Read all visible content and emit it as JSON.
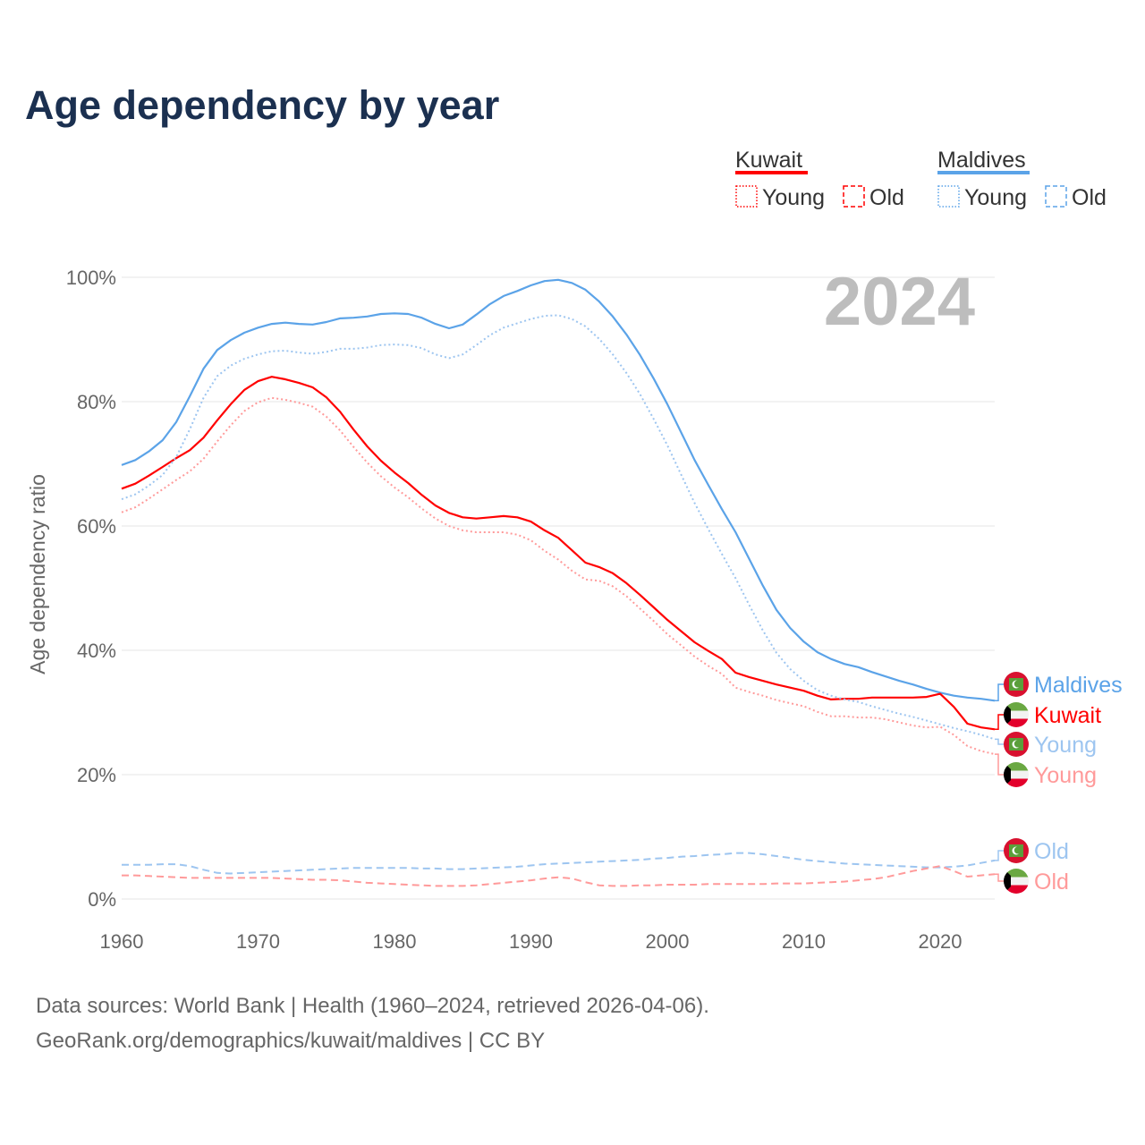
{
  "title": "Age dependency by year",
  "year_badge": "2024",
  "footer": {
    "line1": "Data sources: World Bank | Health (1960–2024, retrieved 2026-04-06).",
    "line2": "GeoRank.org/demographics/kuwait/maldives | CC BY"
  },
  "legend": {
    "groups": [
      {
        "country": "Kuwait",
        "young": "Young",
        "old": "Old",
        "color": "#ff0000",
        "light": "#ff9a9a"
      },
      {
        "country": "Maldives",
        "young": "Young",
        "old": "Old",
        "color": "#5ba3e8",
        "light": "#9dc5f0"
      }
    ]
  },
  "colors": {
    "kuwait": "#ff0000",
    "kuwait_light": "#ff9a9a",
    "maldives": "#5ba3e8",
    "maldives_light": "#9dc5f0",
    "title": "#1b3050",
    "grid": "#e6e6e6"
  },
  "chart_data": {
    "type": "line",
    "title": "Age dependency by year",
    "xlabel": "",
    "ylabel": "Age dependency ratio",
    "xlim": [
      1960,
      2024
    ],
    "ylim": [
      0,
      100
    ],
    "yticks": [
      "0%",
      "20%",
      "40%",
      "60%",
      "80%",
      "100%"
    ],
    "ytick_values": [
      0,
      20,
      40,
      60,
      80,
      100
    ],
    "xticks": [
      "1960",
      "1970",
      "1980",
      "1990",
      "2000",
      "2010",
      "2020"
    ],
    "xtick_values": [
      1960,
      1970,
      1980,
      1990,
      2000,
      2010,
      2020
    ],
    "grid": true,
    "legend_position": "top-right",
    "x_start": 1960,
    "series": [
      {
        "name": "Maldives",
        "label": "Maldives",
        "country": "maldives",
        "style": "solid",
        "color": "#5ba3e8",
        "values": [
          69.8,
          70.6,
          72.0,
          73.8,
          76.7,
          80.9,
          85.3,
          88.3,
          89.9,
          91.1,
          91.9,
          92.5,
          92.7,
          92.5,
          92.4,
          92.8,
          93.4,
          93.5,
          93.7,
          94.1,
          94.2,
          94.1,
          93.5,
          92.5,
          91.8,
          92.4,
          94.0,
          95.7,
          97.0,
          97.8,
          98.7,
          99.4,
          99.6,
          99.1,
          98.0,
          96.1,
          93.7,
          90.8,
          87.5,
          83.7,
          79.6,
          75.1,
          70.6,
          66.6,
          62.7,
          59.0,
          54.7,
          50.4,
          46.5,
          43.6,
          41.4,
          39.7,
          38.6,
          37.8,
          37.3,
          36.5,
          35.8,
          35.1,
          34.5,
          33.8,
          33.2,
          32.7,
          32.4,
          32.2,
          31.9
        ]
      },
      {
        "name": "Kuwait",
        "label": "Kuwait",
        "country": "kuwait",
        "style": "solid",
        "color": "#ff0000",
        "values": [
          66.0,
          66.8,
          68.1,
          69.5,
          70.9,
          72.2,
          74.2,
          77.0,
          79.6,
          81.9,
          83.3,
          84.0,
          83.6,
          83.0,
          82.3,
          80.7,
          78.4,
          75.5,
          72.8,
          70.5,
          68.6,
          66.9,
          65.0,
          63.3,
          62.1,
          61.4,
          61.2,
          61.4,
          61.6,
          61.4,
          60.7,
          59.3,
          58.1,
          56.1,
          54.1,
          53.4,
          52.4,
          50.8,
          48.9,
          46.9,
          44.9,
          43.1,
          41.3,
          39.9,
          38.6,
          36.4,
          35.7,
          35.1,
          34.5,
          34.0,
          33.5,
          32.7,
          32.1,
          32.2,
          32.2,
          32.4,
          32.4,
          32.4,
          32.4,
          32.5,
          33.0,
          30.9,
          28.2,
          27.6,
          27.3
        ]
      },
      {
        "name": "Maldives Young",
        "label": "Young",
        "country": "maldives",
        "style": "dotted",
        "color": "#9dc5f0",
        "values": [
          64.3,
          65.1,
          66.5,
          68.2,
          71.1,
          75.6,
          80.6,
          84.1,
          85.8,
          86.9,
          87.6,
          88.1,
          88.2,
          87.9,
          87.7,
          88.0,
          88.5,
          88.5,
          88.7,
          89.1,
          89.2,
          89.1,
          88.6,
          87.6,
          87.0,
          87.6,
          89.1,
          90.7,
          91.9,
          92.6,
          93.3,
          93.8,
          93.9,
          93.3,
          92.1,
          90.1,
          87.6,
          84.6,
          81.2,
          77.2,
          73.0,
          68.3,
          63.7,
          59.5,
          55.5,
          51.6,
          47.3,
          43.2,
          39.6,
          37.0,
          35.1,
          33.6,
          32.7,
          32.1,
          31.7,
          31.0,
          30.4,
          29.8,
          29.3,
          28.7,
          28.1,
          27.5,
          27.0,
          26.4,
          25.7
        ]
      },
      {
        "name": "Kuwait Young",
        "label": "Young",
        "country": "kuwait",
        "style": "dotted",
        "color": "#ff9a9a",
        "values": [
          62.2,
          63.0,
          64.4,
          65.9,
          67.4,
          68.8,
          70.8,
          73.6,
          76.2,
          78.5,
          79.9,
          80.6,
          80.3,
          79.8,
          79.2,
          77.6,
          75.4,
          72.7,
          70.2,
          68.0,
          66.2,
          64.6,
          62.8,
          61.2,
          60.0,
          59.3,
          59.0,
          59.0,
          59.0,
          58.6,
          57.7,
          56.0,
          54.6,
          52.8,
          51.4,
          51.2,
          50.3,
          48.7,
          46.7,
          44.7,
          42.6,
          40.8,
          39.0,
          37.5,
          36.2,
          34.0,
          33.3,
          32.7,
          32.0,
          31.5,
          31.0,
          30.1,
          29.4,
          29.4,
          29.2,
          29.2,
          28.9,
          28.4,
          27.9,
          27.6,
          27.7,
          26.4,
          24.6,
          23.8,
          23.3
        ]
      },
      {
        "name": "Maldives Old",
        "label": "Old",
        "country": "maldives",
        "style": "dashed",
        "color": "#9dc5f0",
        "values": [
          5.5,
          5.5,
          5.5,
          5.6,
          5.6,
          5.3,
          4.7,
          4.2,
          4.1,
          4.2,
          4.3,
          4.4,
          4.5,
          4.6,
          4.7,
          4.8,
          4.9,
          5.0,
          5.0,
          5.0,
          5.0,
          5.0,
          4.9,
          4.9,
          4.8,
          4.8,
          4.9,
          5.0,
          5.1,
          5.2,
          5.4,
          5.6,
          5.7,
          5.8,
          5.9,
          6.0,
          6.1,
          6.2,
          6.3,
          6.5,
          6.6,
          6.8,
          6.9,
          7.1,
          7.2,
          7.4,
          7.4,
          7.2,
          6.9,
          6.6,
          6.3,
          6.1,
          5.9,
          5.7,
          5.6,
          5.5,
          5.4,
          5.3,
          5.2,
          5.1,
          5.1,
          5.2,
          5.4,
          5.8,
          6.2
        ]
      },
      {
        "name": "Kuwait Old",
        "label": "Old",
        "country": "kuwait",
        "style": "dashed",
        "color": "#ff9a9a",
        "values": [
          3.8,
          3.8,
          3.7,
          3.6,
          3.5,
          3.4,
          3.4,
          3.4,
          3.4,
          3.4,
          3.4,
          3.4,
          3.3,
          3.2,
          3.1,
          3.1,
          3.0,
          2.8,
          2.6,
          2.5,
          2.4,
          2.3,
          2.2,
          2.1,
          2.1,
          2.1,
          2.2,
          2.4,
          2.6,
          2.8,
          3.0,
          3.3,
          3.5,
          3.3,
          2.7,
          2.2,
          2.1,
          2.1,
          2.2,
          2.2,
          2.3,
          2.3,
          2.3,
          2.4,
          2.4,
          2.4,
          2.4,
          2.4,
          2.5,
          2.5,
          2.5,
          2.6,
          2.7,
          2.8,
          3.0,
          3.2,
          3.5,
          4.0,
          4.5,
          4.9,
          5.3,
          4.5,
          3.6,
          3.8,
          4.0
        ]
      }
    ]
  }
}
